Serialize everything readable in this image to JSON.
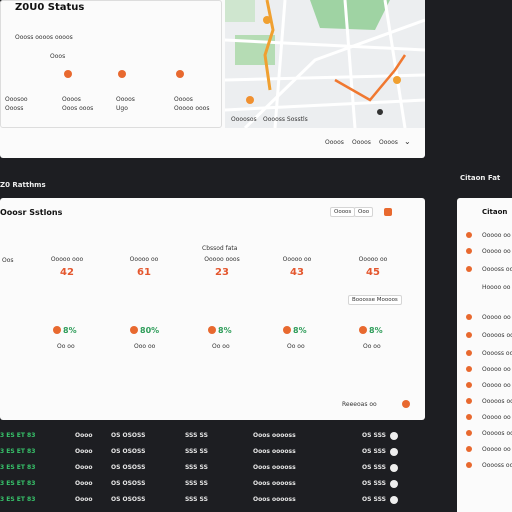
{
  "status_panel": {
    "title": "Z0U0 Status",
    "subtitle": "Oooss oooos oooos",
    "tag": "Ooos",
    "items": [
      {
        "label": "Ooosoo",
        "sub": "Oooss"
      },
      {
        "label": "Oooos",
        "sub": "Ooos ooos"
      },
      {
        "label": "Oooos",
        "sub": "Ugo"
      },
      {
        "label": "Oooos",
        "sub": "Ooooo ooos"
      }
    ]
  },
  "map": {
    "labels": [
      "Oooosos",
      "Ooooss Sosstls"
    ],
    "buttons": [
      "Oooos",
      "Oooos",
      "Oooos"
    ]
  },
  "sections": {
    "left": "Z0 Ratthms",
    "right": "Citaon Fat"
  },
  "stations_card": {
    "title": "Ooosr Sstlons",
    "controls": [
      "Oooos",
      "Ooo"
    ],
    "group_label": "Cbssod fata",
    "row_label": "Oos",
    "columns": [
      {
        "label": "Ooooo ooo",
        "value": "42",
        "pct": "8%",
        "sub": "Oo oo"
      },
      {
        "label": "Ooooo oo",
        "value": "61",
        "pct": "80%",
        "sub": "Ooo oo"
      },
      {
        "label": "Ooooo ooos",
        "value": "23",
        "pct": "8%",
        "sub": "Oo oo"
      },
      {
        "label": "Ooooo oo",
        "value": "43",
        "pct": "8%",
        "sub": "Oo oo"
      },
      {
        "label": "Ooooo oo",
        "value": "45",
        "pct": "8%",
        "sub": "Oo oo"
      }
    ],
    "button": "Booosse Moooos",
    "footer": "Reeeoas oo"
  },
  "side_list": {
    "title": "Citaon",
    "items": [
      "Ooooo oo",
      "Ooooo oo",
      "Ooooss oo",
      "Hoooo oo",
      "Ooooo oo",
      "Ooooos oo",
      "Ooooss oo",
      "Ooooo oo",
      "Ooooo oo",
      "Ooooos oo",
      "Ooooo oo",
      "Ooooos oo",
      "Ooooo oo",
      "Ooooss oo"
    ]
  },
  "table": {
    "rows": [
      [
        "3 ES ET 83",
        "Oooo",
        "OS OSOSS",
        "SSS SS",
        "Ooos ooooss",
        "OS SSS"
      ],
      [
        "3 ES ET 83",
        "Oooo",
        "OS OSOSS",
        "SSS SS",
        "Ooos ooooss",
        "OS SSS"
      ],
      [
        "3 ES ET 83",
        "Oooo",
        "OS OSOSS",
        "SSS SS",
        "Ooos ooooss",
        "OS SSS"
      ],
      [
        "3 ES ET 83",
        "Oooo",
        "OS OSOSS",
        "SSS SS",
        "Ooos ooooss",
        "OS SSS"
      ],
      [
        "3 ES ET 83",
        "Oooo",
        "OS OSOSS",
        "SSS SS",
        "Ooos ooooss",
        "OS SSS"
      ]
    ]
  }
}
